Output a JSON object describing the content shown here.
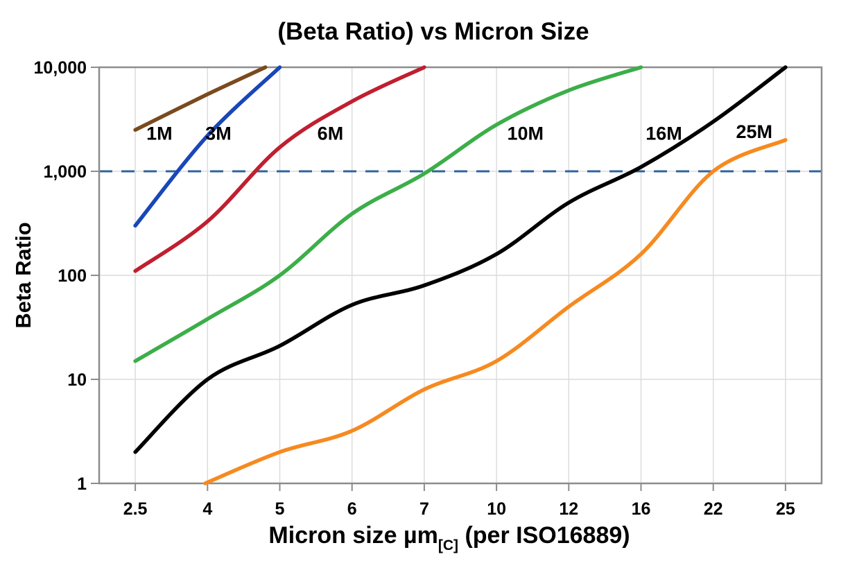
{
  "title": "(Beta Ratio) vs Micron Size",
  "y_axis": {
    "label": "Beta Ratio",
    "tick_labels": [
      "10,000",
      "1,000",
      "100",
      "10",
      "1"
    ],
    "tick_values": [
      10000,
      1000,
      100,
      10,
      1
    ]
  },
  "x_axis": {
    "label_main": "Micron size µm",
    "label_sub": "[C]",
    "label_tail": " (per ISO16889)",
    "tick_labels": [
      "2.5",
      "4",
      "5",
      "6",
      "7",
      "10",
      "12",
      "16",
      "22",
      "25"
    ]
  },
  "chart_data": {
    "type": "line",
    "title": "(Beta Ratio) vs Micron Size",
    "xlabel": "Micron size µm[C] (per ISO16889)",
    "ylabel": "Beta Ratio",
    "x_scale": "categorical",
    "y_scale": "log",
    "ylim": [
      1,
      10000
    ],
    "grid": true,
    "legend_position": "inline-labels",
    "categories": [
      2.5,
      4,
      5,
      6,
      7,
      10,
      12,
      16,
      22,
      25
    ],
    "reference_line": {
      "beta": 1000,
      "style": "dashed",
      "color": "#31639C"
    },
    "series": [
      {
        "name": "1M",
        "color": "#7A4A1E",
        "label": {
          "text": "1M",
          "x": 3.0,
          "beta": 2300
        },
        "points": [
          [
            2.5,
            2500
          ],
          [
            4,
            5500
          ],
          [
            4.8,
            10000
          ]
        ]
      },
      {
        "name": "3M",
        "color": "#1947B8",
        "label": {
          "text": "3M",
          "x": 4.15,
          "beta": 2300
        },
        "points": [
          [
            2.5,
            300
          ],
          [
            4,
            2200
          ],
          [
            5,
            10000
          ]
        ]
      },
      {
        "name": "6M",
        "color": "#C01F30",
        "label": {
          "text": "6M",
          "x": 5.7,
          "beta": 2300
        },
        "points": [
          [
            2.5,
            110
          ],
          [
            4,
            330
          ],
          [
            5,
            1700
          ],
          [
            6,
            4700
          ],
          [
            7,
            10000
          ]
        ]
      },
      {
        "name": "10M",
        "color": "#3CAE49",
        "label": {
          "text": "10M",
          "x": 10.8,
          "beta": 2300
        },
        "points": [
          [
            2.5,
            15
          ],
          [
            4,
            38
          ],
          [
            5,
            100
          ],
          [
            6,
            390
          ],
          [
            7,
            950
          ],
          [
            10,
            2800
          ],
          [
            12,
            6000
          ],
          [
            16,
            10000
          ]
        ]
      },
      {
        "name": "16M",
        "color": "#000000",
        "label": {
          "text": "16M",
          "x": 17.9,
          "beta": 2300
        },
        "points": [
          [
            2.5,
            2
          ],
          [
            4,
            10
          ],
          [
            5,
            21
          ],
          [
            6,
            52
          ],
          [
            7,
            80
          ],
          [
            10,
            160
          ],
          [
            12,
            500
          ],
          [
            16,
            1100
          ],
          [
            22,
            3000
          ],
          [
            25,
            10000
          ]
        ]
      },
      {
        "name": "25M",
        "color": "#F68A20",
        "label": {
          "text": "25M",
          "x": 23.7,
          "beta": 2400
        },
        "points": [
          [
            3.95,
            1
          ],
          [
            5,
            2
          ],
          [
            6,
            3.2
          ],
          [
            7,
            8
          ],
          [
            10,
            15
          ],
          [
            12,
            50
          ],
          [
            16,
            160
          ],
          [
            22,
            1000
          ],
          [
            25,
            2000
          ]
        ]
      }
    ]
  },
  "colors": {
    "background": "#FFFFFF",
    "grid": "#DCDCDC",
    "frame": "#8C8C8C",
    "reference_dash": "#31639C",
    "text": "#000000"
  }
}
